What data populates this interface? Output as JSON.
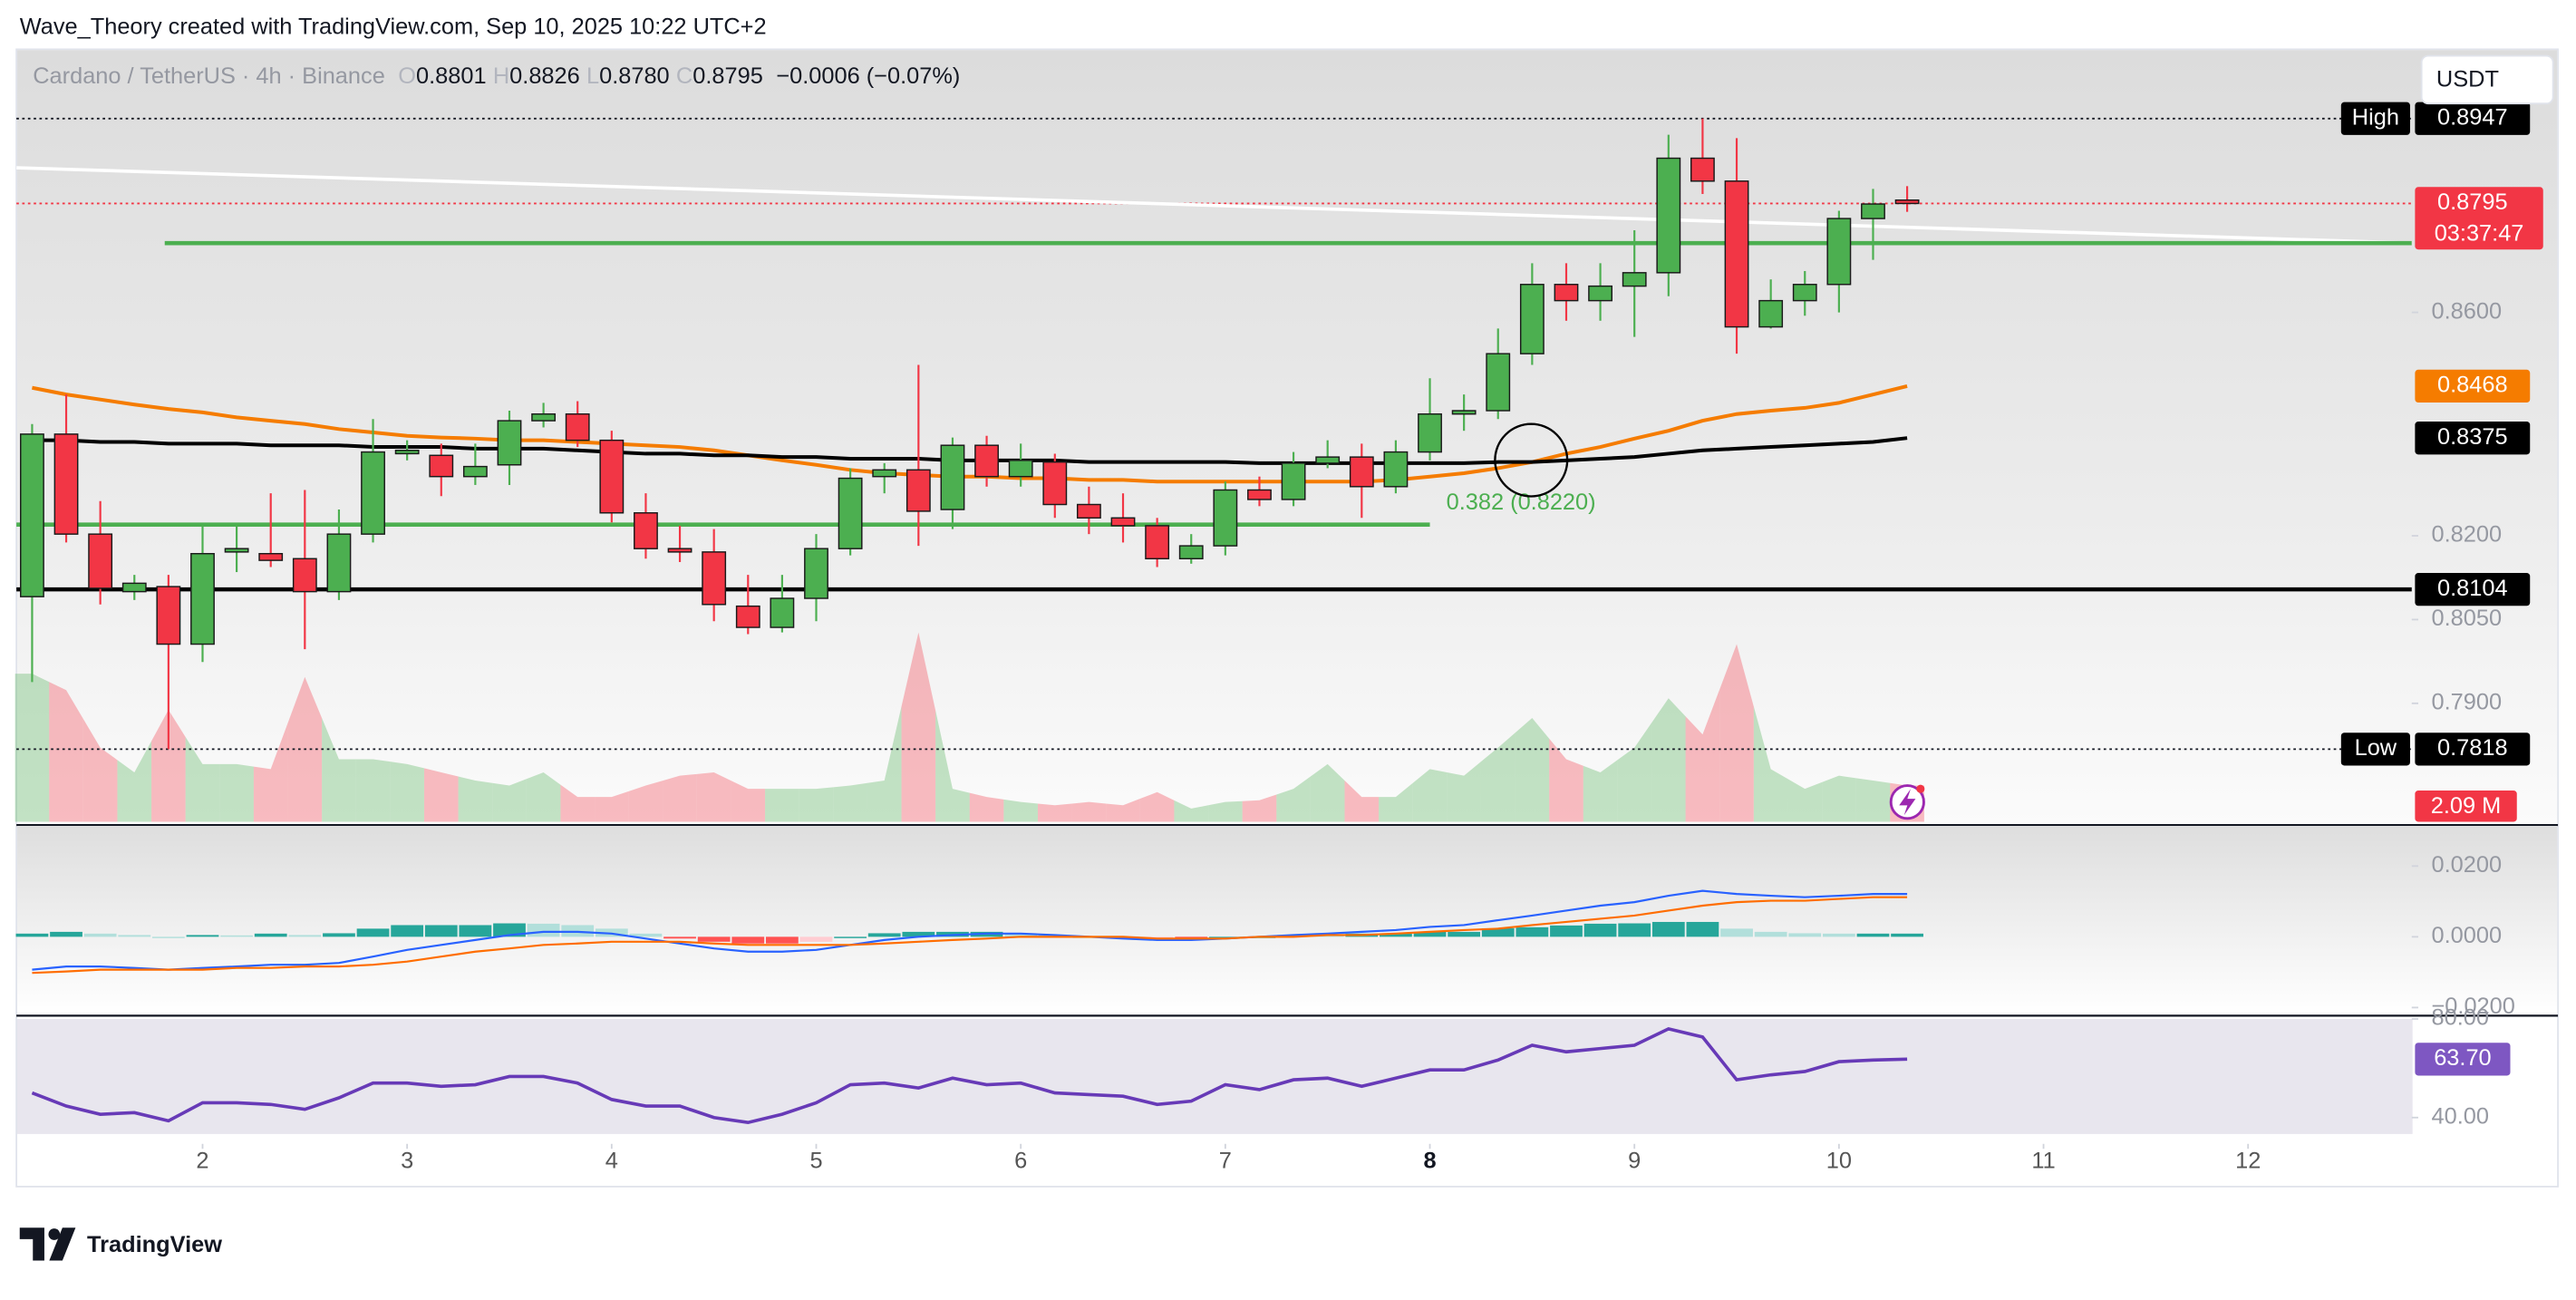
{
  "header": "Wave_Theory created with TradingView.com, Sep 10, 2025 10:22 UTC+2",
  "logo": "TradingView",
  "currency_button": "USDT",
  "chart_data": {
    "type": "candlestick",
    "title": "Cardano / TetherUS · 4h · Binance",
    "legend_ohlc": [
      {
        "key": "O",
        "text": "0.8801"
      },
      {
        "key": "H",
        "text": "0.8826"
      },
      {
        "key": "L",
        "text": "0.8780"
      },
      {
        "key": "C",
        "text": "0.8795"
      }
    ],
    "change_text": "−0.0006 (−0.07%)",
    "up_color": "#4caf50",
    "down_color": "#f23645",
    "x": [
      1.1667,
      1.3333,
      1.5,
      1.6667,
      1.8333,
      2,
      2.1667,
      2.3333,
      2.5,
      2.6667,
      2.8333,
      3,
      3.1667,
      3.3333,
      3.5,
      3.6667,
      3.8333,
      4,
      4.1667,
      4.3333,
      4.5,
      4.6667,
      4.8333,
      5,
      5.1667,
      5.3333,
      5.5,
      5.6667,
      5.8333,
      6,
      6.1667,
      6.3333,
      6.5,
      6.6667,
      6.8333,
      7,
      7.1667,
      7.3333,
      7.5,
      7.6667,
      7.8333,
      8,
      8.1667,
      8.3333,
      8.5,
      8.6667,
      8.8333,
      9,
      9.1667,
      9.3333,
      9.5,
      9.6667,
      9.8333,
      10,
      10.1667,
      10.3333
    ],
    "open": [
      0.8091,
      0.8382,
      0.8203,
      0.81,
      0.8109,
      0.8006,
      0.8171,
      0.8168,
      0.8159,
      0.81,
      0.8203,
      0.8347,
      0.8344,
      0.8306,
      0.8327,
      0.8406,
      0.8418,
      0.8371,
      0.8241,
      0.8177,
      0.8171,
      0.8074,
      0.8036,
      0.8088,
      0.8177,
      0.8306,
      0.8318,
      0.8247,
      0.8362,
      0.8306,
      0.8332,
      0.8256,
      0.8232,
      0.8218,
      0.8159,
      0.8182,
      0.8282,
      0.8265,
      0.833,
      0.8341,
      0.8288,
      0.835,
      0.8418,
      0.8424,
      0.8526,
      0.865,
      0.8621,
      0.8647,
      0.8671,
      0.8876,
      0.8835,
      0.8574,
      0.8621,
      0.865,
      0.8768,
      0.8801
    ],
    "high": [
      0.84,
      0.8453,
      0.8262,
      0.813,
      0.813,
      0.8218,
      0.8218,
      0.8276,
      0.8282,
      0.8247,
      0.8409,
      0.8371,
      0.8365,
      0.8365,
      0.8424,
      0.8438,
      0.8441,
      0.8388,
      0.8276,
      0.8218,
      0.8212,
      0.813,
      0.813,
      0.8203,
      0.8321,
      0.833,
      0.8506,
      0.8376,
      0.8379,
      0.8365,
      0.8347,
      0.8288,
      0.8276,
      0.8232,
      0.8203,
      0.8297,
      0.8306,
      0.835,
      0.8371,
      0.8365,
      0.8371,
      0.8482,
      0.8453,
      0.8571,
      0.8688,
      0.8688,
      0.8688,
      0.8747,
      0.8918,
      0.8947,
      0.8912,
      0.8659,
      0.8674,
      0.8782,
      0.8821,
      0.8826
    ],
    "low": [
      0.7938,
      0.8188,
      0.8077,
      0.8085,
      0.7818,
      0.7974,
      0.8135,
      0.8144,
      0.7997,
      0.8085,
      0.8188,
      0.8335,
      0.8271,
      0.8291,
      0.8291,
      0.8394,
      0.8359,
      0.8224,
      0.8159,
      0.8153,
      0.8047,
      0.8024,
      0.8027,
      0.8047,
      0.8165,
      0.8276,
      0.8182,
      0.8212,
      0.8288,
      0.8288,
      0.8232,
      0.8203,
      0.8188,
      0.8144,
      0.815,
      0.8165,
      0.8253,
      0.8253,
      0.8321,
      0.8232,
      0.8276,
      0.8335,
      0.8388,
      0.8409,
      0.8506,
      0.8585,
      0.8585,
      0.8556,
      0.8629,
      0.8812,
      0.8526,
      0.8571,
      0.8594,
      0.86,
      0.8694,
      0.878
    ],
    "close": [
      0.8382,
      0.8203,
      0.8106,
      0.8115,
      0.8006,
      0.8168,
      0.8177,
      0.8156,
      0.81,
      0.8203,
      0.835,
      0.8353,
      0.8306,
      0.8324,
      0.8406,
      0.8418,
      0.8371,
      0.8241,
      0.8177,
      0.8171,
      0.8077,
      0.8036,
      0.8088,
      0.8177,
      0.8303,
      0.8318,
      0.8244,
      0.8362,
      0.8306,
      0.8335,
      0.8256,
      0.8232,
      0.8218,
      0.8159,
      0.8182,
      0.8282,
      0.8265,
      0.833,
      0.8341,
      0.8288,
      0.835,
      0.8418,
      0.8424,
      0.8526,
      0.865,
      0.8621,
      0.8647,
      0.8671,
      0.8876,
      0.8835,
      0.8574,
      0.8621,
      0.865,
      0.8768,
      0.8794,
      0.8795
    ],
    "xlim": [
      1.09,
      12.8
    ],
    "xticks": [
      2,
      3,
      4,
      5,
      6,
      7,
      8,
      9,
      10,
      11,
      12
    ],
    "emphasized_xtick": 8,
    "ylim": [
      0.7688,
      0.9071
    ],
    "yticks": [
      {
        "value": 0.86,
        "label": "0.8600"
      },
      {
        "value": 0.82,
        "label": "0.8200"
      },
      {
        "value": 0.805,
        "label": "0.8050"
      },
      {
        "value": 0.79,
        "label": "0.7900"
      }
    ],
    "moving_averages": [
      {
        "color": "#f57c00",
        "values": [
          0.8465,
          0.8453,
          0.8444,
          0.8435,
          0.8427,
          0.8421,
          0.8412,
          0.8406,
          0.84,
          0.8391,
          0.8385,
          0.8379,
          0.8376,
          0.8374,
          0.8371,
          0.8371,
          0.8368,
          0.8365,
          0.8362,
          0.8359,
          0.8353,
          0.8344,
          0.8335,
          0.8327,
          0.8318,
          0.8312,
          0.8309,
          0.8306,
          0.8306,
          0.8303,
          0.8303,
          0.83,
          0.83,
          0.8297,
          0.8297,
          0.8297,
          0.8297,
          0.8297,
          0.8297,
          0.8297,
          0.83,
          0.8306,
          0.8312,
          0.8321,
          0.8332,
          0.8347,
          0.8359,
          0.8374,
          0.8388,
          0.8406,
          0.8418,
          0.8424,
          0.8429,
          0.8438,
          0.8453,
          0.8468
        ]
      },
      {
        "color": "#000000",
        "values": [
          0.8371,
          0.8371,
          0.8368,
          0.8368,
          0.8365,
          0.8365,
          0.8365,
          0.8362,
          0.8362,
          0.8362,
          0.8359,
          0.8359,
          0.8359,
          0.8356,
          0.8356,
          0.8356,
          0.8353,
          0.835,
          0.8347,
          0.8347,
          0.8344,
          0.8344,
          0.8341,
          0.8341,
          0.8338,
          0.8338,
          0.8338,
          0.8335,
          0.8335,
          0.8335,
          0.8335,
          0.8332,
          0.8332,
          0.8332,
          0.8332,
          0.8332,
          0.833,
          0.833,
          0.833,
          0.833,
          0.833,
          0.833,
          0.833,
          0.8332,
          0.8332,
          0.8335,
          0.8338,
          0.8341,
          0.8347,
          0.8353,
          0.8356,
          0.8359,
          0.8362,
          0.8365,
          0.8368,
          0.8375
        ]
      }
    ],
    "levels": [
      {
        "value": 0.8724,
        "x": [
          1.815,
          12.8
        ],
        "color": "#4caf50"
      },
      {
        "value": 0.822,
        "x": [
          1.09,
          8
        ],
        "color": "#4caf50",
        "label": "0.382 (0.8220)"
      },
      {
        "value": 0.8104,
        "x": [
          1.09,
          12.8
        ],
        "color": "#000000"
      }
    ],
    "trendline": {
      "x": [
        1.09,
        12.8
      ],
      "values": [
        0.8859,
        0.8724
      ],
      "color": "#ffffff"
    },
    "extremes": [
      {
        "name": "High",
        "value": 0.8947,
        "label": "0.8947"
      },
      {
        "name": "Low",
        "value": 0.7818,
        "label": "0.7818"
      }
    ],
    "price_tags": [
      {
        "value": 0.8795,
        "label": "0.8795",
        "sublabel": "03:37:47",
        "color": "#f23645",
        "dotted_line": true
      },
      {
        "value": 0.8468,
        "label": "0.8468",
        "color": "#f57c00"
      },
      {
        "value": 0.8375,
        "label": "0.8375",
        "color": "#000000"
      },
      {
        "value": 0.8104,
        "label": "0.8104",
        "color": "#000000"
      }
    ],
    "volume": {
      "values": [
        8.55,
        7.6,
        4.28,
        2.85,
        6.46,
        3.33,
        3.33,
        3.04,
        8.36,
        3.61,
        3.61,
        3.33,
        2.85,
        2.38,
        2.09,
        2.85,
        1.43,
        1.43,
        2.09,
        2.66,
        2.85,
        1.9,
        1.9,
        1.9,
        2.09,
        2.38,
        10.93,
        1.9,
        1.43,
        1.14,
        0.95,
        1.14,
        0.95,
        1.71,
        0.76,
        1.14,
        1.24,
        1.9,
        3.33,
        1.43,
        1.43,
        3.04,
        2.66,
        4.28,
        5.99,
        3.61,
        2.85,
        4.28,
        7.13,
        5.04,
        10.26,
        3.04,
        1.9,
        2.66,
        2.38,
        2.09
      ],
      "lim": [
        0,
        11.2
      ],
      "last_label": "2.09 M",
      "up_color": "rgba(76,175,80,0.32)",
      "down_color": "rgba(242,54,69,0.32)",
      "tag_color": "#f23645"
    },
    "macd": {
      "ylim": [
        -0.0223,
        0.0302
      ],
      "yticks": [
        {
          "value": 0.02,
          "label": "0.0200"
        },
        {
          "value": 0,
          "label": "0.0000"
        },
        {
          "value": -0.02,
          "label": "−0.0200"
        }
      ],
      "macd": [
        -0.0093,
        -0.0084,
        -0.0084,
        -0.0088,
        -0.0093,
        -0.0088,
        -0.0084,
        -0.0079,
        -0.0079,
        -0.0074,
        -0.0056,
        -0.0037,
        -0.0023,
        -0.0009,
        0.0005,
        0.0014,
        0.0014,
        0.0009,
        -0.0005,
        -0.0019,
        -0.0033,
        -0.0042,
        -0.0042,
        -0.0037,
        -0.0023,
        -0.0009,
        0,
        0.0005,
        0.0009,
        0.0009,
        0.0005,
        0,
        -0.0005,
        -0.0009,
        -0.0009,
        -0.0005,
        0,
        0.0005,
        0.0009,
        0.0014,
        0.0019,
        0.0028,
        0.0033,
        0.0047,
        0.006,
        0.0074,
        0.0088,
        0.0098,
        0.0116,
        0.013,
        0.0121,
        0.0116,
        0.0112,
        0.0116,
        0.0121,
        0.0121
      ],
      "signal": [
        -0.0102,
        -0.0098,
        -0.0093,
        -0.0093,
        -0.0093,
        -0.0093,
        -0.0088,
        -0.0088,
        -0.0084,
        -0.0084,
        -0.0079,
        -0.007,
        -0.0056,
        -0.0042,
        -0.0033,
        -0.0023,
        -0.0019,
        -0.0014,
        -0.0014,
        -0.0014,
        -0.0019,
        -0.0023,
        -0.0023,
        -0.0023,
        -0.0023,
        -0.0019,
        -0.0014,
        -0.0009,
        -0.0005,
        0,
        0,
        0,
        0,
        -0.0005,
        -0.0005,
        -0.0005,
        0,
        0,
        0.0005,
        0.0005,
        0.0009,
        0.0014,
        0.0019,
        0.0023,
        0.0033,
        0.0042,
        0.0051,
        0.006,
        0.0074,
        0.0088,
        0.0098,
        0.0102,
        0.0102,
        0.0107,
        0.0112,
        0.0112
      ],
      "histogram": [
        0.0009,
        0.0014,
        0.0009,
        0.0005,
        0,
        0.0005,
        0.0004,
        0.0009,
        0.0005,
        0.001,
        0.0023,
        0.0033,
        0.0033,
        0.0033,
        0.0038,
        0.0037,
        0.0033,
        0.0023,
        0.0009,
        -0.0005,
        -0.0014,
        -0.0019,
        -0.0019,
        -0.0014,
        0,
        0.001,
        0.0014,
        0.0014,
        0.0014,
        0.0009,
        0.0005,
        0,
        -0.0005,
        -0.0004,
        -0.0004,
        0,
        0,
        0.0005,
        0.0004,
        0.0009,
        0.001,
        0.0014,
        0.0014,
        0.0024,
        0.0027,
        0.0032,
        0.0037,
        0.0038,
        0.0042,
        0.0042,
        0.0023,
        0.0014,
        0.001,
        0.0009,
        0.0009,
        0.0009
      ],
      "macd_color": "#2962ff",
      "signal_color": "#ff6d00",
      "hist_colors": [
        "#26a69a",
        "#b2dfdb",
        "#ff5252",
        "#ffcdd2"
      ]
    },
    "rsi": {
      "ylim": [
        33.33,
        80
      ],
      "yticks": [
        {
          "value": 80,
          "label": "80.00"
        },
        {
          "value": 40,
          "label": "40.00"
        }
      ],
      "values": [
        50,
        44.67,
        41.33,
        42,
        38.67,
        46,
        46,
        45.33,
        43.33,
        48,
        54,
        54,
        52.67,
        53.33,
        56.67,
        56.67,
        54,
        47.33,
        44.67,
        44.67,
        40,
        38,
        41.33,
        46,
        53.33,
        54,
        52,
        56,
        53.33,
        54,
        50,
        49.33,
        48.67,
        45.33,
        46.67,
        53.33,
        51.33,
        55.33,
        56,
        52.67,
        56,
        59.33,
        59.33,
        63.33,
        69.33,
        66.67,
        68,
        69.33,
        76,
        72.67,
        55.33,
        57.33,
        58.67,
        62.67,
        63.33,
        63.7
      ],
      "last_label": "63.70",
      "color": "#673ab7",
      "tag_color": "#7e57c2"
    }
  }
}
